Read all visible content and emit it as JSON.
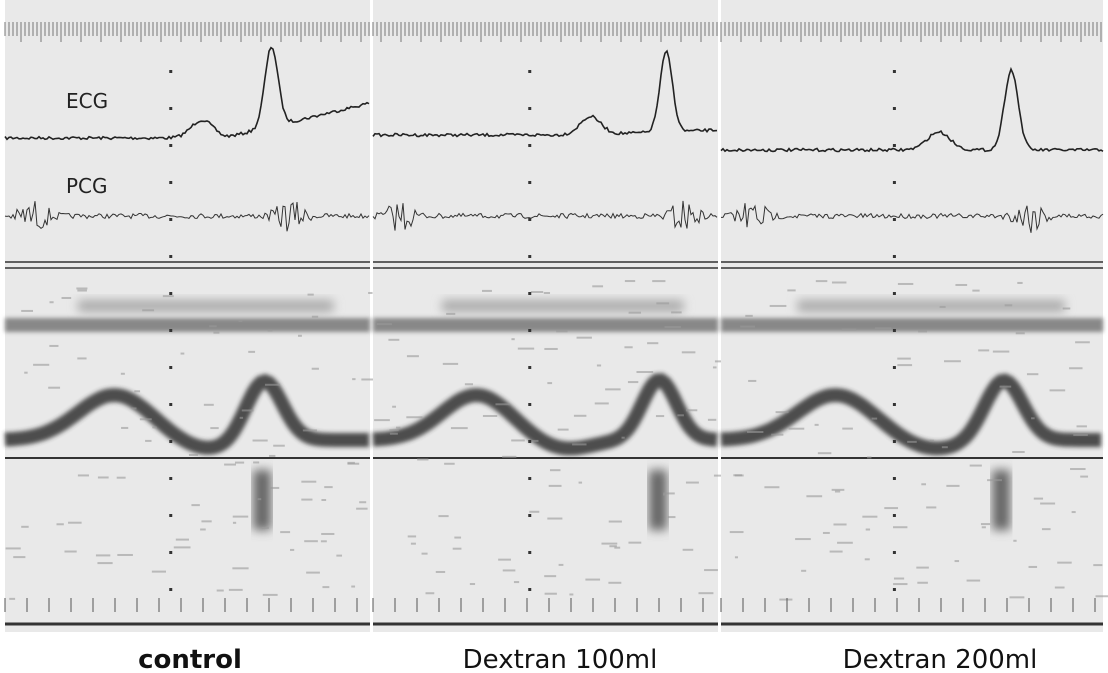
{
  "trace_labels": {
    "ecg": "ECG",
    "pcg": "PCG"
  },
  "panels": [
    {
      "caption": "control"
    },
    {
      "caption": "Dextran 100ml"
    },
    {
      "caption": "Dextran 200ml"
    }
  ]
}
